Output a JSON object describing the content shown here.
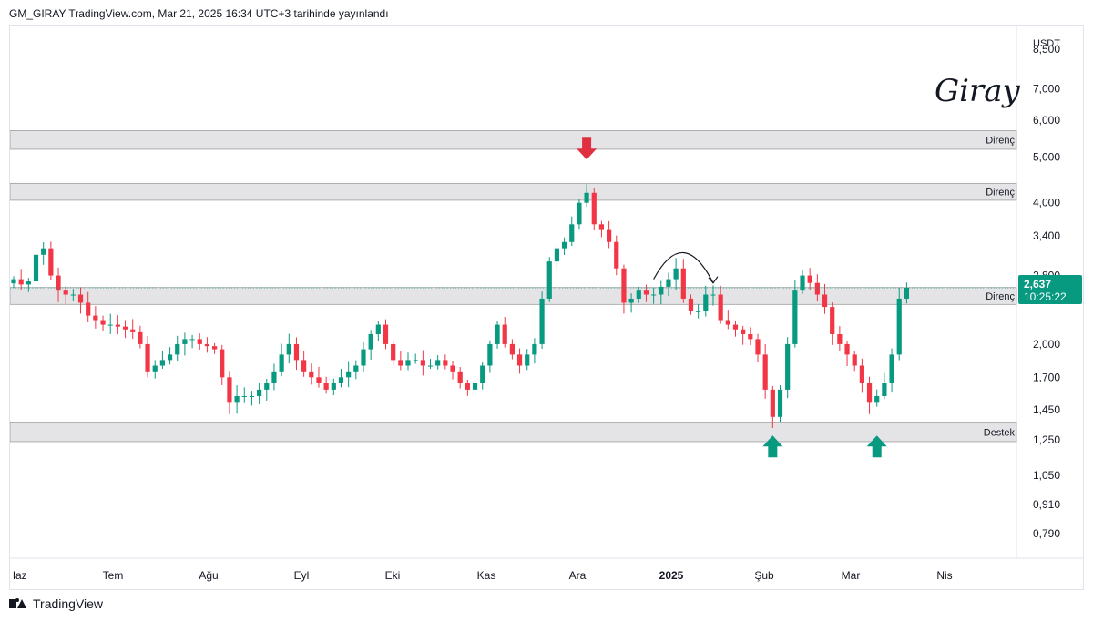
{
  "header": {
    "publish_text": "GM_GIRAY TradingView.com, Mar 21, 2025 16:34 UTC+3 tarihinde yayınlandı"
  },
  "footer": {
    "brand": "TradingView"
  },
  "watermark": {
    "signature": "Giray"
  },
  "colors": {
    "up": "#089981",
    "down": "#f23645",
    "zone_fill": "#e4e4e6",
    "zone_stroke": "#9e9e9e",
    "price_tag": "#089981",
    "arrow_down": "#e03040",
    "arrow_up": "#089981"
  },
  "chart_data": {
    "type": "candlestick",
    "currency": "USDT",
    "scale": "log",
    "ylim": [
      0.7,
      9.5
    ],
    "y_ticks": [
      "8,500",
      "7,000",
      "6,000",
      "5,000",
      "4,000",
      "3,400",
      "2,800",
      "2,000",
      "1,700",
      "1,450",
      "1,250",
      "1,050",
      "0,910",
      "0,790"
    ],
    "y_tick_values": [
      8.5,
      7.0,
      6.0,
      5.0,
      4.0,
      3.4,
      2.8,
      2.0,
      1.7,
      1.45,
      1.25,
      1.05,
      0.91,
      0.79
    ],
    "x_ticks": [
      {
        "label": "Haz",
        "bold": false
      },
      {
        "label": "Tem",
        "bold": false
      },
      {
        "label": "Ağu",
        "bold": false
      },
      {
        "label": "Eyl",
        "bold": false
      },
      {
        "label": "Eki",
        "bold": false
      },
      {
        "label": "Kas",
        "bold": false
      },
      {
        "label": "Ara",
        "bold": false
      },
      {
        "label": "2025",
        "bold": true
      },
      {
        "label": "Şub",
        "bold": false
      },
      {
        "label": "Mar",
        "bold": false
      },
      {
        "label": "Nis",
        "bold": false
      }
    ],
    "zones": [
      {
        "label": "Direnç",
        "low": 5.2,
        "high": 5.7
      },
      {
        "label": "Direnç",
        "low": 4.05,
        "high": 4.4
      },
      {
        "label": "Direnç",
        "low": 2.43,
        "high": 2.64
      },
      {
        "label": "Destek",
        "low": 1.24,
        "high": 1.36
      }
    ],
    "last_price": {
      "value": "2,637",
      "countdown": "10:25:22",
      "y": 2.637
    },
    "closes": [
      2.75,
      2.68,
      2.72,
      3.1,
      3.2,
      2.8,
      2.6,
      2.55,
      2.55,
      2.45,
      2.3,
      2.25,
      2.2,
      2.2,
      2.18,
      2.15,
      2.12,
      2.0,
      1.75,
      1.8,
      1.85,
      1.9,
      2.0,
      2.05,
      2.05,
      2.0,
      1.98,
      1.95,
      1.7,
      1.5,
      1.55,
      1.55,
      1.55,
      1.6,
      1.65,
      1.75,
      1.9,
      2.0,
      1.85,
      1.75,
      1.7,
      1.65,
      1.6,
      1.65,
      1.7,
      1.75,
      1.8,
      1.95,
      2.1,
      2.2,
      2.0,
      1.85,
      1.8,
      1.85,
      1.85,
      1.8,
      1.8,
      1.85,
      1.8,
      1.75,
      1.65,
      1.6,
      1.65,
      1.8,
      2.0,
      2.2,
      2.0,
      1.9,
      1.8,
      1.9,
      2.0,
      2.5,
      3.0,
      3.2,
      3.3,
      3.6,
      4.0,
      4.2,
      3.6,
      3.5,
      3.3,
      2.9,
      2.45,
      2.5,
      2.6,
      2.55,
      2.55,
      2.65,
      2.75,
      2.9,
      2.5,
      2.35,
      2.35,
      2.55,
      2.55,
      2.25,
      2.2,
      2.15,
      2.1,
      2.05,
      1.9,
      1.6,
      1.4,
      1.6,
      2.0,
      2.6,
      2.8,
      2.7,
      2.55,
      2.4,
      2.1,
      2.0,
      1.9,
      1.8,
      1.65,
      1.5,
      1.55,
      1.65,
      1.9,
      2.5,
      2.637
    ],
    "annotations": [
      {
        "type": "arrow-down",
        "color": "red",
        "at_index": 77,
        "price": 4.9
      },
      {
        "type": "arc-arrow",
        "color": "black",
        "from_index": 86,
        "to_index": 94
      },
      {
        "type": "arrow-up",
        "color": "green",
        "at_index": 102,
        "price": 1.2
      },
      {
        "type": "arrow-up",
        "color": "green",
        "at_index": 116,
        "price": 1.2
      }
    ]
  }
}
